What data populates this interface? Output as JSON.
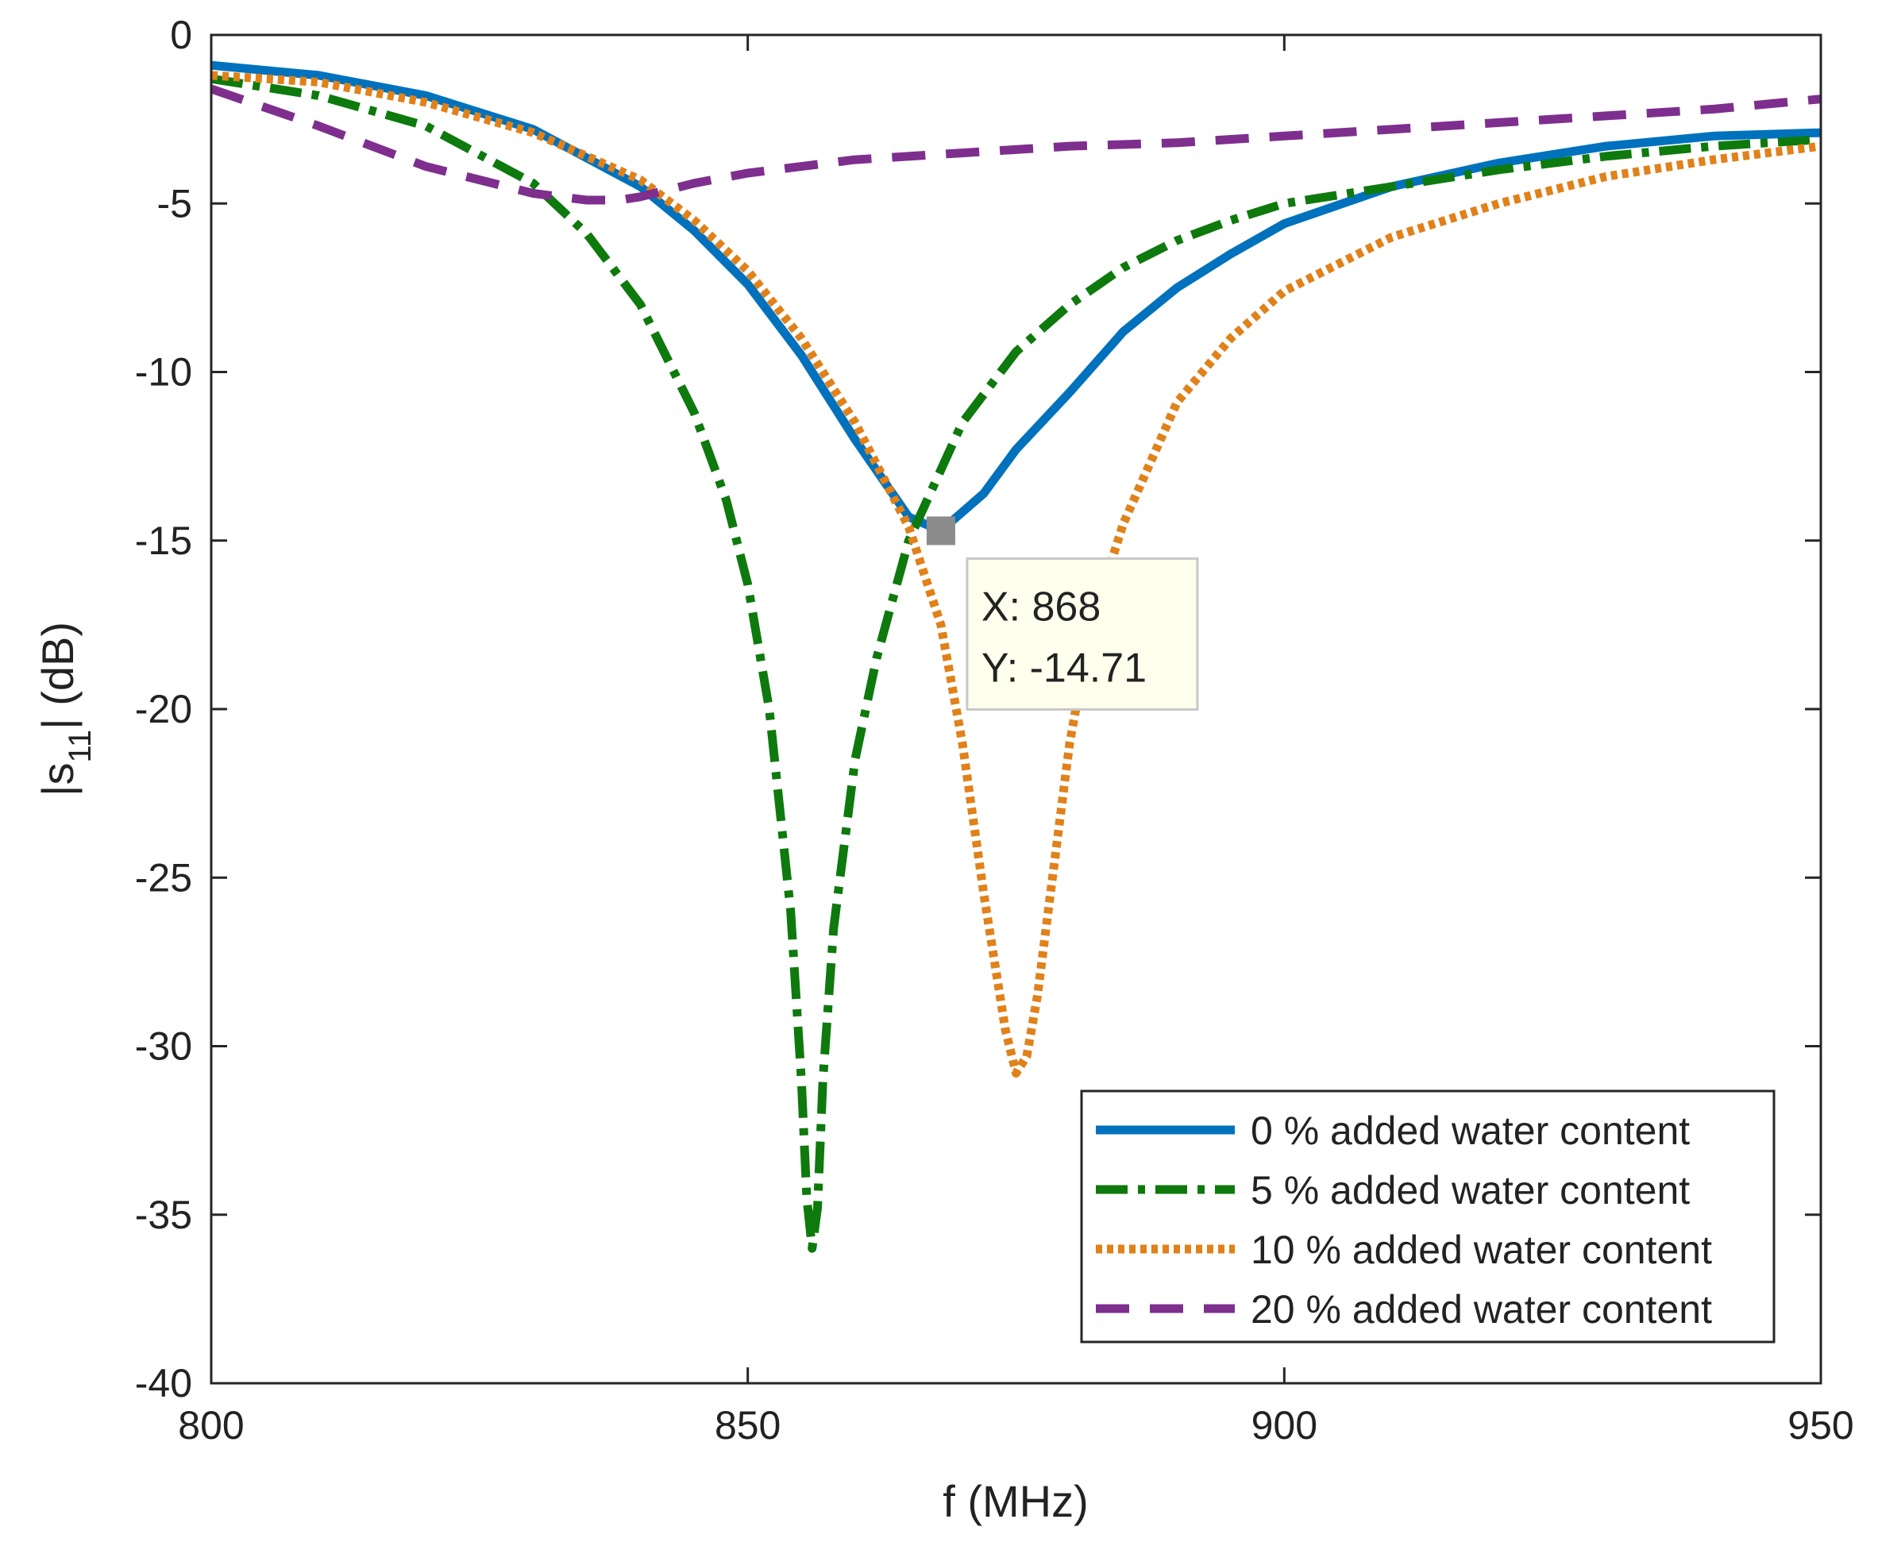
{
  "chart_data": {
    "type": "line",
    "title": "",
    "xlabel": "f (MHz)",
    "ylabel_parts": {
      "prefix": "|s",
      "subscript": "11",
      "suffix": "| (dB)"
    },
    "xlim": [
      800,
      950
    ],
    "ylim": [
      -40,
      0
    ],
    "grid": false,
    "x_ticks": [
      800,
      850,
      900,
      950
    ],
    "x_tick_labels": [
      "800",
      "850",
      "900",
      "950"
    ],
    "y_ticks": [
      0,
      -5,
      -10,
      -15,
      -20,
      -25,
      -30,
      -35,
      -40
    ],
    "y_tick_labels": [
      "0",
      "-5",
      "-10",
      "-15",
      "-20",
      "-25",
      "-30",
      "-35",
      "-40"
    ],
    "legend_position": "bottom-right",
    "series": [
      {
        "name": "0 % added water content",
        "color": "#0072BD",
        "style": "solid",
        "x": [
          800,
          810,
          820,
          830,
          840,
          845,
          850,
          855,
          860,
          865,
          868,
          872,
          875,
          880,
          885,
          890,
          895,
          900,
          910,
          920,
          930,
          940,
          950
        ],
        "y": [
          -0.9,
          -1.2,
          -1.8,
          -2.8,
          -4.5,
          -5.8,
          -7.4,
          -9.5,
          -12.0,
          -14.3,
          -14.71,
          -13.6,
          -12.3,
          -10.6,
          -8.8,
          -7.5,
          -6.5,
          -5.6,
          -4.5,
          -3.8,
          -3.3,
          -3.0,
          -2.9
        ]
      },
      {
        "name": "5 % added water content",
        "color": "#0E7A0D",
        "style": "dashdot",
        "x": [
          800,
          810,
          820,
          830,
          835,
          840,
          845,
          848,
          850,
          852,
          854,
          855,
          855.5,
          856,
          856.5,
          857,
          858,
          860,
          862,
          865,
          870,
          875,
          880,
          885,
          890,
          895,
          900,
          910,
          920,
          930,
          940,
          950
        ],
        "y": [
          -1.3,
          -1.8,
          -2.7,
          -4.4,
          -5.9,
          -8.0,
          -11.2,
          -13.8,
          -16.3,
          -20.0,
          -26.0,
          -31.0,
          -34.5,
          -36.0,
          -34.8,
          -31.0,
          -26.5,
          -21.5,
          -18.5,
          -15.0,
          -11.5,
          -9.4,
          -8.0,
          -6.9,
          -6.1,
          -5.5,
          -5.0,
          -4.5,
          -4.0,
          -3.6,
          -3.3,
          -3.1
        ]
      },
      {
        "name": "10 % added water content",
        "color": "#E0811A",
        "style": "dotted",
        "x": [
          800,
          810,
          820,
          830,
          840,
          845,
          850,
          855,
          860,
          865,
          868,
          870,
          872,
          874,
          875,
          876,
          877,
          878,
          880,
          882,
          885,
          890,
          895,
          900,
          910,
          920,
          930,
          940,
          950
        ],
        "y": [
          -1.2,
          -1.4,
          -2.0,
          -2.9,
          -4.3,
          -5.5,
          -7.0,
          -9.0,
          -11.5,
          -14.6,
          -17.5,
          -21.0,
          -25.5,
          -29.5,
          -30.8,
          -30.3,
          -28.5,
          -26.0,
          -21.0,
          -17.5,
          -14.5,
          -10.9,
          -9.0,
          -7.6,
          -6.0,
          -5.0,
          -4.2,
          -3.7,
          -3.3
        ]
      },
      {
        "name": "20 % added water content",
        "color": "#7E2F8E",
        "style": "dashed",
        "x": [
          800,
          810,
          820,
          830,
          835,
          838,
          840,
          845,
          850,
          855,
          860,
          870,
          880,
          890,
          900,
          910,
          920,
          930,
          940,
          950
        ],
        "y": [
          -1.6,
          -2.7,
          -3.9,
          -4.7,
          -4.9,
          -4.9,
          -4.8,
          -4.4,
          -4.1,
          -3.9,
          -3.7,
          -3.5,
          -3.3,
          -3.2,
          -3.0,
          -2.8,
          -2.6,
          -2.4,
          -2.2,
          -1.9
        ]
      }
    ],
    "datatip": {
      "x": 868,
      "y": -14.71,
      "x_label": "X: 868",
      "y_label": "Y: -14.71"
    }
  }
}
